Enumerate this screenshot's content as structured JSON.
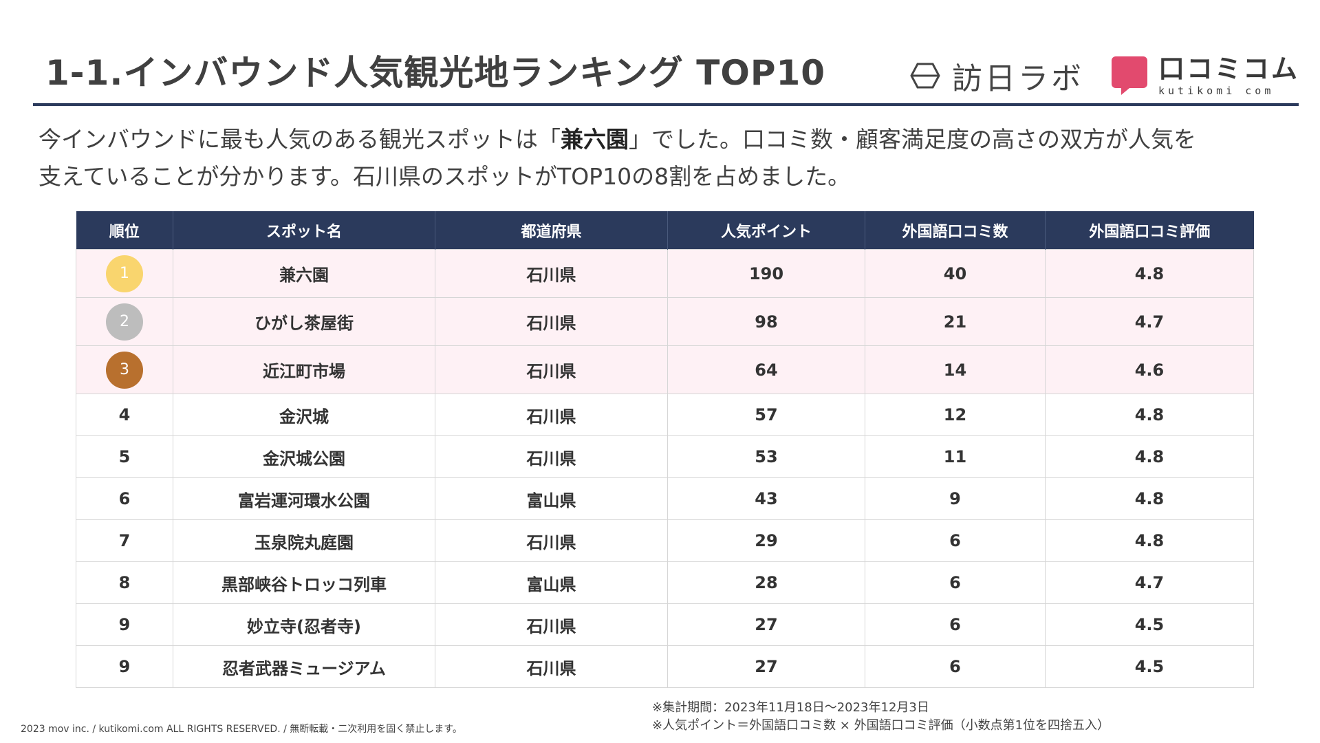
{
  "header": {
    "title": "1-1.インバウンド人気観光地ランキング TOP10",
    "logo_houjin": "訪日ラボ",
    "logo_kuchikomi_jp": "口コミコム",
    "logo_kuchikomi_en": "kutikomi com"
  },
  "lead": {
    "line1_before": "今インバウンドに最も人気のある観光スポットは「",
    "line1_strong": "兼六園",
    "line1_after": "」でした。口コミ数・顧客満足度の高さの双方が人気を",
    "line2": "支えていることが分かります。石川県のスポットがTOP10の8割を占めました。"
  },
  "table": {
    "headers": [
      "順位",
      "スポット名",
      "都道府県",
      "人気ポイント",
      "外国語口コミ数",
      "外国語口コミ評価"
    ],
    "rows": [
      {
        "rank": "1",
        "name": "兼六園",
        "pref": "石川県",
        "points": "190",
        "reviews": "40",
        "rating": "4.8"
      },
      {
        "rank": "2",
        "name": "ひがし茶屋街",
        "pref": "石川県",
        "points": "98",
        "reviews": "21",
        "rating": "4.7"
      },
      {
        "rank": "3",
        "name": "近江町市場",
        "pref": "石川県",
        "points": "64",
        "reviews": "14",
        "rating": "4.6"
      },
      {
        "rank": "4",
        "name": "金沢城",
        "pref": "石川県",
        "points": "57",
        "reviews": "12",
        "rating": "4.8"
      },
      {
        "rank": "5",
        "name": "金沢城公園",
        "pref": "石川県",
        "points": "53",
        "reviews": "11",
        "rating": "4.8"
      },
      {
        "rank": "6",
        "name": "富岩運河環水公園",
        "pref": "富山県",
        "points": "43",
        "reviews": "9",
        "rating": "4.8"
      },
      {
        "rank": "7",
        "name": "玉泉院丸庭園",
        "pref": "石川県",
        "points": "29",
        "reviews": "6",
        "rating": "4.8"
      },
      {
        "rank": "8",
        "name": "黒部峡谷トロッコ列車",
        "pref": "富山県",
        "points": "28",
        "reviews": "6",
        "rating": "4.7"
      },
      {
        "rank": "9",
        "name": "妙立寺(忍者寺)",
        "pref": "石川県",
        "points": "27",
        "reviews": "6",
        "rating": "4.5"
      },
      {
        "rank": "9",
        "name": "忍者武器ミュージアム",
        "pref": "石川県",
        "points": "27",
        "reviews": "6",
        "rating": "4.5"
      }
    ]
  },
  "notes": {
    "period": "※集計期間：2023年11月18日～2023年12月3日",
    "formula": "※人気ポイント＝外国語口コミ数 × 外国語口コミ評価（小数点第1位を四捨五入）"
  },
  "footer": {
    "copyright": "2023 mov inc. / kutikomi.com ALL RIGHTS RESERVED. / 無断転載・二次利用を固く禁止します。"
  },
  "colors": {
    "header_navy": "#2b3a5c",
    "top3_row_bg": "#fef1f5",
    "gold": "#f9d56e",
    "silver": "#bdbdbd",
    "bronze": "#b8702e",
    "kuchikomi_pink": "#e24a6e"
  }
}
